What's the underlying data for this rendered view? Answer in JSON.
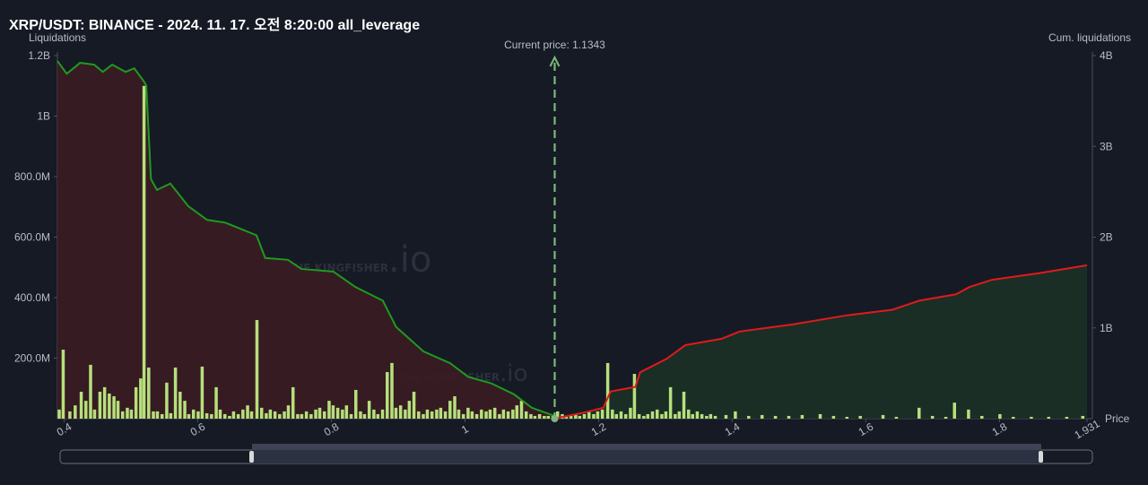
{
  "chart_data": {
    "type": "bar",
    "title": "XRP/USDT: BINANCE - 2024. 11. 17. 오전 8:20:00 all_leverage",
    "y_label": "Liquidations",
    "y2_label": "Cum. liquidations",
    "x_label": "Price",
    "current_price": 1.1343,
    "current_price_label": "Current price: 1.1343",
    "watermark": "THE KINGFISHER",
    "watermark_suffix": ".io",
    "xlim": [
      0.39,
      1.931
    ],
    "xticks": [
      0.4,
      0.6,
      0.8,
      1,
      1.2,
      1.4,
      1.6,
      1.8,
      1.931
    ],
    "ylim": [
      0,
      1200000000
    ],
    "yticks": [
      {
        "value": 200000000,
        "label": "200.0M"
      },
      {
        "value": 400000000,
        "label": "400.0M"
      },
      {
        "value": 600000000,
        "label": "600.0M"
      },
      {
        "value": 800000000,
        "label": "800.0M"
      },
      {
        "value": 1000000000,
        "label": "1B"
      },
      {
        "value": 1200000000,
        "label": "1.2B"
      }
    ],
    "y2lim": [
      0,
      4000000000
    ],
    "y2ticks": [
      {
        "value": 1000000000,
        "label": "1B"
      },
      {
        "value": 2000000000,
        "label": "2B"
      },
      {
        "value": 3000000000,
        "label": "3B"
      },
      {
        "value": 4000000000,
        "label": "4B"
      }
    ],
    "bars": {
      "color": "#b6e07c",
      "x": [
        0.393,
        0.399,
        0.409,
        0.417,
        0.426,
        0.433,
        0.44,
        0.446,
        0.454,
        0.461,
        0.468,
        0.475,
        0.481,
        0.488,
        0.495,
        0.501,
        0.508,
        0.515,
        0.52,
        0.527,
        0.534,
        0.54,
        0.547,
        0.554,
        0.56,
        0.567,
        0.574,
        0.581,
        0.587,
        0.594,
        0.601,
        0.607,
        0.614,
        0.621,
        0.628,
        0.634,
        0.641,
        0.648,
        0.654,
        0.661,
        0.668,
        0.675,
        0.681,
        0.689,
        0.696,
        0.703,
        0.709,
        0.716,
        0.723,
        0.73,
        0.736,
        0.743,
        0.75,
        0.756,
        0.763,
        0.77,
        0.777,
        0.783,
        0.79,
        0.797,
        0.803,
        0.81,
        0.817,
        0.823,
        0.83,
        0.837,
        0.844,
        0.85,
        0.857,
        0.864,
        0.87,
        0.877,
        0.884,
        0.891,
        0.897,
        0.904,
        0.911,
        0.917,
        0.924,
        0.931,
        0.938,
        0.944,
        0.951,
        0.958,
        0.964,
        0.971,
        0.978,
        0.985,
        0.991,
        0.998,
        1.005,
        1.011,
        1.018,
        1.025,
        1.032,
        1.038,
        1.045,
        1.052,
        1.058,
        1.065,
        1.072,
        1.078,
        1.085,
        1.092,
        1.099,
        1.105,
        1.112,
        1.119,
        1.125,
        1.132,
        1.139,
        1.146,
        1.152,
        1.159,
        1.166,
        1.172,
        1.179,
        1.186,
        1.193,
        1.199,
        1.206,
        1.214,
        1.221,
        1.227,
        1.234,
        1.241,
        1.248,
        1.254,
        1.261,
        1.268,
        1.274,
        1.281,
        1.288,
        1.295,
        1.301,
        1.308,
        1.315,
        1.321,
        1.328,
        1.335,
        1.341,
        1.348,
        1.355,
        1.362,
        1.368,
        1.375,
        1.391,
        1.405,
        1.425,
        1.445,
        1.465,
        1.485,
        1.505,
        1.532,
        1.552,
        1.572,
        1.592,
        1.626,
        1.646,
        1.68,
        1.7,
        1.72,
        1.733,
        1.754,
        1.774,
        1.801,
        1.821,
        1.848,
        1.874,
        1.901,
        1.925
      ],
      "values": [
        30000000,
        228000000,
        24000000,
        44000000,
        89000000,
        59000000,
        178000000,
        30000000,
        89000000,
        104000000,
        83000000,
        74000000,
        59000000,
        24000000,
        36000000,
        30000000,
        104000000,
        133000000,
        1100000000,
        169000000,
        24000000,
        24000000,
        15000000,
        119000000,
        18000000,
        169000000,
        89000000,
        59000000,
        15000000,
        30000000,
        24000000,
        172000000,
        18000000,
        15000000,
        104000000,
        30000000,
        15000000,
        9000000,
        24000000,
        15000000,
        30000000,
        44000000,
        24000000,
        326000000,
        36000000,
        18000000,
        30000000,
        24000000,
        15000000,
        24000000,
        44000000,
        104000000,
        15000000,
        15000000,
        24000000,
        15000000,
        30000000,
        36000000,
        24000000,
        59000000,
        44000000,
        36000000,
        30000000,
        44000000,
        15000000,
        95000000,
        24000000,
        15000000,
        59000000,
        30000000,
        15000000,
        30000000,
        154000000,
        184000000,
        36000000,
        44000000,
        30000000,
        59000000,
        89000000,
        24000000,
        15000000,
        30000000,
        24000000,
        30000000,
        36000000,
        24000000,
        59000000,
        74000000,
        30000000,
        15000000,
        36000000,
        24000000,
        15000000,
        30000000,
        24000000,
        30000000,
        36000000,
        15000000,
        30000000,
        24000000,
        30000000,
        44000000,
        59000000,
        24000000,
        15000000,
        9000000,
        15000000,
        9000000,
        9000000,
        9000000,
        24000000,
        15000000,
        9000000,
        9000000,
        15000000,
        9000000,
        15000000,
        24000000,
        15000000,
        24000000,
        30000000,
        184000000,
        30000000,
        15000000,
        24000000,
        15000000,
        36000000,
        148000000,
        15000000,
        9000000,
        15000000,
        24000000,
        30000000,
        15000000,
        24000000,
        104000000,
        15000000,
        24000000,
        89000000,
        30000000,
        15000000,
        24000000,
        15000000,
        9000000,
        15000000,
        9000000,
        12000000,
        24000000,
        9000000,
        12000000,
        9000000,
        9000000,
        12000000,
        15000000,
        9000000,
        6000000,
        9000000,
        12000000,
        6000000,
        36000000,
        9000000,
        6000000,
        53000000,
        30000000,
        9000000,
        15000000,
        6000000,
        6000000,
        6000000,
        6000000,
        9000000
      ]
    },
    "cumulative": [
      {
        "color": "#1f9a1f",
        "fill": "#3a1c22",
        "x": [
          0.39,
          0.404,
          0.424,
          0.445,
          0.458,
          0.472,
          0.492,
          0.505,
          0.519,
          0.523,
          0.53,
          0.539,
          0.559,
          0.586,
          0.614,
          0.641,
          0.668,
          0.688,
          0.701,
          0.735,
          0.755,
          0.803,
          0.836,
          0.877,
          0.897,
          0.938,
          0.978,
          1.005,
          1.039,
          1.073,
          1.1,
          1.134
        ],
        "values": [
          3940000000,
          3800000000,
          3920000000,
          3900000000,
          3820000000,
          3900000000,
          3820000000,
          3860000000,
          3720000000,
          3670000000,
          2640000000,
          2520000000,
          2590000000,
          2340000000,
          2190000000,
          2160000000,
          2080000000,
          2020000000,
          1770000000,
          1750000000,
          1650000000,
          1620000000,
          1450000000,
          1300000000,
          1010000000,
          740000000,
          610000000,
          460000000,
          390000000,
          270000000,
          120000000,
          30000000
        ]
      },
      {
        "color": "#e01b1b",
        "fill": "#1b3126",
        "x": [
          1.134,
          1.18,
          1.207,
          1.218,
          1.255,
          1.262,
          1.302,
          1.33,
          1.384,
          1.411,
          1.492,
          1.573,
          1.64,
          1.68,
          1.735,
          1.755,
          1.789,
          1.857,
          1.931
        ],
        "values": [
          0,
          70000000,
          120000000,
          300000000,
          350000000,
          510000000,
          660000000,
          810000000,
          880000000,
          960000000,
          1040000000,
          1140000000,
          1200000000,
          1300000000,
          1370000000,
          1450000000,
          1530000000,
          1600000000,
          1690000000
        ]
      }
    ]
  }
}
